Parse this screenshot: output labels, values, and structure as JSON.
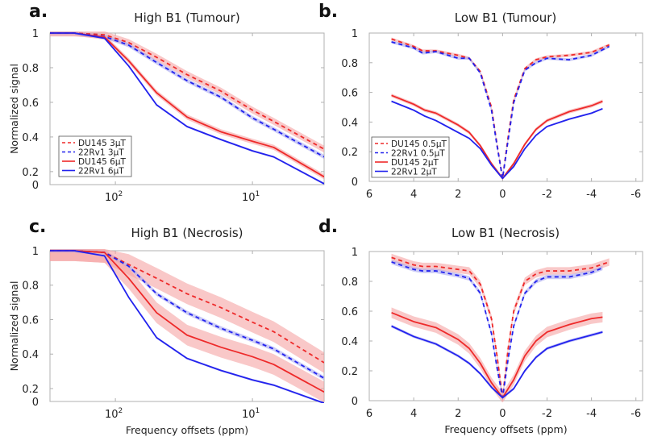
{
  "colors": {
    "red": "#ee2a2a",
    "blue": "#2222ee",
    "red_band": "#f5a3a3",
    "blue_band": "#a9a9f0",
    "axis": "#b0b0b0"
  },
  "common": {
    "ylabel": "Normalized signal",
    "xlabel": "Frequency offsets (ppm)"
  },
  "chart_data": [
    {
      "id": "a",
      "panel_label": "a.",
      "title": "High B1 (Tumour)",
      "type": "line",
      "xscale": "log",
      "xlim": [
        300,
        3
      ],
      "ylim": [
        0.125,
        1
      ],
      "xticks": [
        {
          "value": 100,
          "base": "10",
          "exp": "2"
        },
        {
          "value": 10,
          "base": "10",
          "exp": "1"
        }
      ],
      "yticks": [
        {
          "value": 1,
          "label": "1"
        },
        {
          "value": 0.8,
          "label": "0.8"
        },
        {
          "value": 0.6,
          "label": "0.6"
        },
        {
          "value": 0.4,
          "label": "0.4"
        },
        {
          "value": 0.2,
          "label": "0.2"
        },
        {
          "value": 0.125,
          "label": "0"
        }
      ],
      "show_ylabel": true,
      "show_xlabel": false,
      "legend": "bottom-left",
      "x": [
        300,
        200,
        120,
        80,
        50,
        30,
        17,
        10,
        7,
        3
      ],
      "series": [
        {
          "name": "DU145 3μT",
          "color": "red",
          "dash": true,
          "band": 0.02,
          "values": [
            1,
            1,
            0.99,
            0.945,
            0.86,
            0.76,
            0.665,
            0.555,
            0.49,
            0.33
          ]
        },
        {
          "name": "22Rv1 3μT",
          "color": "blue",
          "dash": true,
          "band": 0.012,
          "values": [
            1,
            1,
            0.98,
            0.93,
            0.83,
            0.725,
            0.63,
            0.51,
            0.445,
            0.285
          ]
        },
        {
          "name": "DU145 6μT",
          "color": "red",
          "dash": false,
          "band": 0.015,
          "values": [
            1,
            1,
            0.977,
            0.84,
            0.655,
            0.515,
            0.43,
            0.375,
            0.34,
            0.17
          ]
        },
        {
          "name": "22Rv1 6μT",
          "color": "blue",
          "dash": false,
          "band": 0.006,
          "values": [
            1,
            1,
            0.97,
            0.81,
            0.585,
            0.46,
            0.385,
            0.32,
            0.285,
            0.13
          ]
        }
      ]
    },
    {
      "id": "b",
      "panel_label": "b.",
      "title": "Low B1 (Tumour)",
      "type": "line",
      "xscale": "linear",
      "xlim": [
        6,
        -6.3
      ],
      "ylim": [
        0,
        1
      ],
      "xticks": [
        {
          "value": 6,
          "label": "6"
        },
        {
          "value": 4,
          "label": "4"
        },
        {
          "value": 2,
          "label": "2"
        },
        {
          "value": 0,
          "label": "0"
        },
        {
          "value": -2,
          "label": "-2"
        },
        {
          "value": -4,
          "label": "-4"
        },
        {
          "value": -6,
          "label": "-6"
        }
      ],
      "yticks": [
        {
          "value": 1,
          "label": "1"
        },
        {
          "value": 0.8,
          "label": "0.8"
        },
        {
          "value": 0.6,
          "label": "0.6"
        },
        {
          "value": 0.4,
          "label": "0.4"
        },
        {
          "value": 0.2,
          "label": "0.2"
        },
        {
          "value": 0,
          "label": "0"
        }
      ],
      "show_ylabel": false,
      "show_xlabel": false,
      "legend": "bottom-left",
      "series": [
        {
          "name": "DU145 0.5μT",
          "color": "red",
          "dash": true,
          "band": 0.01,
          "x": [
            5,
            4,
            3.6,
            3,
            2,
            1.5,
            1,
            0.5,
            0.25,
            0,
            -0.25,
            -0.5,
            -1,
            -1.5,
            -2,
            -3,
            -4,
            -4.8
          ],
          "values": [
            0.96,
            0.91,
            0.88,
            0.88,
            0.85,
            0.83,
            0.74,
            0.5,
            0.25,
            0.02,
            0.3,
            0.55,
            0.76,
            0.82,
            0.84,
            0.85,
            0.87,
            0.92
          ]
        },
        {
          "name": "22Rv1 0.5μT",
          "color": "blue",
          "dash": true,
          "band": 0.01,
          "x": [
            5,
            4,
            3.6,
            3,
            2,
            1.5,
            1,
            0.5,
            0.25,
            0,
            -0.25,
            -0.5,
            -1,
            -1.5,
            -2,
            -3,
            -4,
            -4.8
          ],
          "values": [
            0.94,
            0.9,
            0.865,
            0.875,
            0.83,
            0.83,
            0.73,
            0.48,
            0.24,
            0.02,
            0.28,
            0.53,
            0.75,
            0.8,
            0.83,
            0.82,
            0.85,
            0.91
          ]
        },
        {
          "name": "DU145 2μT",
          "color": "red",
          "dash": false,
          "band": 0.012,
          "x": [
            5,
            4,
            3.5,
            3,
            2,
            1.5,
            1,
            0.5,
            0,
            -0.5,
            -1,
            -1.5,
            -2,
            -3,
            -4,
            -4.5
          ],
          "values": [
            0.58,
            0.52,
            0.48,
            0.46,
            0.38,
            0.33,
            0.24,
            0.12,
            0.02,
            0.12,
            0.25,
            0.35,
            0.41,
            0.47,
            0.51,
            0.54
          ]
        },
        {
          "name": "22Rv1 2μT",
          "color": "blue",
          "dash": false,
          "band": 0.006,
          "x": [
            5,
            4,
            3.5,
            3,
            2,
            1.5,
            1,
            0.5,
            0,
            -0.5,
            -1,
            -1.5,
            -2,
            -3,
            -4,
            -4.5
          ],
          "values": [
            0.54,
            0.48,
            0.44,
            0.41,
            0.33,
            0.29,
            0.22,
            0.11,
            0.02,
            0.1,
            0.22,
            0.31,
            0.37,
            0.42,
            0.46,
            0.49
          ]
        }
      ]
    },
    {
      "id": "c",
      "panel_label": "c.",
      "title": "High B1 (Necrosis)",
      "type": "line",
      "xscale": "log",
      "xlim": [
        300,
        3
      ],
      "ylim": [
        0.125,
        1
      ],
      "xticks": [
        {
          "value": 100,
          "base": "10",
          "exp": "2"
        },
        {
          "value": 10,
          "base": "10",
          "exp": "1"
        }
      ],
      "yticks": [
        {
          "value": 1,
          "label": "1"
        },
        {
          "value": 0.8,
          "label": "0.8"
        },
        {
          "value": 0.6,
          "label": "0.6"
        },
        {
          "value": 0.4,
          "label": "0.4"
        },
        {
          "value": 0.2,
          "label": "0.2"
        },
        {
          "value": 0.125,
          "label": "0"
        }
      ],
      "show_ylabel": true,
      "show_xlabel": true,
      "legend": "none",
      "x": [
        300,
        200,
        120,
        80,
        50,
        30,
        17,
        10,
        7,
        3
      ],
      "series": [
        {
          "name": "DU145 3μT",
          "color": "red",
          "dash": true,
          "band": 0.06,
          "values": [
            1,
            1,
            0.99,
            0.92,
            0.84,
            0.75,
            0.67,
            0.585,
            0.53,
            0.35
          ]
        },
        {
          "name": "22Rv1 3μT",
          "color": "blue",
          "dash": true,
          "band": 0.012,
          "values": [
            1,
            1,
            0.99,
            0.91,
            0.75,
            0.64,
            0.55,
            0.48,
            0.43,
            0.26
          ]
        },
        {
          "name": "DU145 6μT",
          "color": "red",
          "dash": false,
          "band": 0.06,
          "values": [
            1,
            1,
            0.99,
            0.84,
            0.64,
            0.51,
            0.44,
            0.385,
            0.34,
            0.18
          ]
        },
        {
          "name": "22Rv1 6μT",
          "color": "blue",
          "dash": false,
          "band": 0.006,
          "values": [
            1,
            1,
            0.97,
            0.73,
            0.495,
            0.375,
            0.305,
            0.25,
            0.22,
            0.115
          ]
        }
      ]
    },
    {
      "id": "d",
      "panel_label": "d.",
      "title": "Low B1 (Necrosis)",
      "type": "line",
      "xscale": "linear",
      "xlim": [
        6,
        -6.3
      ],
      "ylim": [
        0,
        1
      ],
      "xticks": [
        {
          "value": 6,
          "label": "6"
        },
        {
          "value": 4,
          "label": "4"
        },
        {
          "value": 2,
          "label": "2"
        },
        {
          "value": 0,
          "label": "0"
        },
        {
          "value": -2,
          "label": "-2"
        },
        {
          "value": -4,
          "label": "-4"
        },
        {
          "value": -6,
          "label": "-6"
        }
      ],
      "yticks": [
        {
          "value": 1,
          "label": "1"
        },
        {
          "value": 0.8,
          "label": "0.8"
        },
        {
          "value": 0.6,
          "label": "0.6"
        },
        {
          "value": 0.4,
          "label": "0.4"
        },
        {
          "value": 0.2,
          "label": "0.2"
        },
        {
          "value": 0,
          "label": "0"
        }
      ],
      "show_ylabel": false,
      "show_xlabel": true,
      "legend": "none",
      "series": [
        {
          "name": "DU145 0.5μT",
          "color": "red",
          "dash": true,
          "band": 0.025,
          "x": [
            5,
            4,
            3.6,
            3,
            2,
            1.5,
            1,
            0.5,
            0.25,
            0,
            -0.25,
            -0.5,
            -1,
            -1.5,
            -2,
            -3,
            -4,
            -4.8
          ],
          "values": [
            0.96,
            0.91,
            0.9,
            0.9,
            0.88,
            0.87,
            0.78,
            0.55,
            0.3,
            0.02,
            0.35,
            0.6,
            0.8,
            0.85,
            0.87,
            0.87,
            0.89,
            0.93
          ]
        },
        {
          "name": "22Rv1 0.5μT",
          "color": "blue",
          "dash": true,
          "band": 0.015,
          "x": [
            5,
            4,
            3.6,
            3,
            2,
            1.5,
            1,
            0.5,
            0.25,
            0,
            -0.25,
            -0.5,
            -1,
            -1.5,
            -2,
            -3,
            -4,
            -4.5
          ],
          "values": [
            0.93,
            0.88,
            0.87,
            0.87,
            0.84,
            0.82,
            0.72,
            0.45,
            0.22,
            0.02,
            0.28,
            0.5,
            0.72,
            0.8,
            0.83,
            0.83,
            0.86,
            0.89
          ]
        },
        {
          "name": "DU145 2μT",
          "color": "red",
          "dash": false,
          "band": 0.035,
          "x": [
            5,
            4,
            3,
            2,
            1.5,
            1,
            0.5,
            0,
            -0.5,
            -1,
            -1.5,
            -2,
            -3,
            -4,
            -4.5
          ],
          "values": [
            0.59,
            0.53,
            0.49,
            0.41,
            0.35,
            0.25,
            0.12,
            0.02,
            0.14,
            0.3,
            0.4,
            0.46,
            0.51,
            0.55,
            0.56
          ]
        },
        {
          "name": "22Rv1 2μT",
          "color": "blue",
          "dash": false,
          "band": 0.01,
          "x": [
            5,
            4,
            3,
            2,
            1.5,
            1,
            0.5,
            0,
            -0.5,
            -1,
            -1.5,
            -2,
            -3,
            -4,
            -4.5
          ],
          "values": [
            0.5,
            0.43,
            0.38,
            0.3,
            0.25,
            0.18,
            0.09,
            0.02,
            0.08,
            0.2,
            0.29,
            0.35,
            0.4,
            0.44,
            0.46
          ]
        }
      ]
    }
  ]
}
